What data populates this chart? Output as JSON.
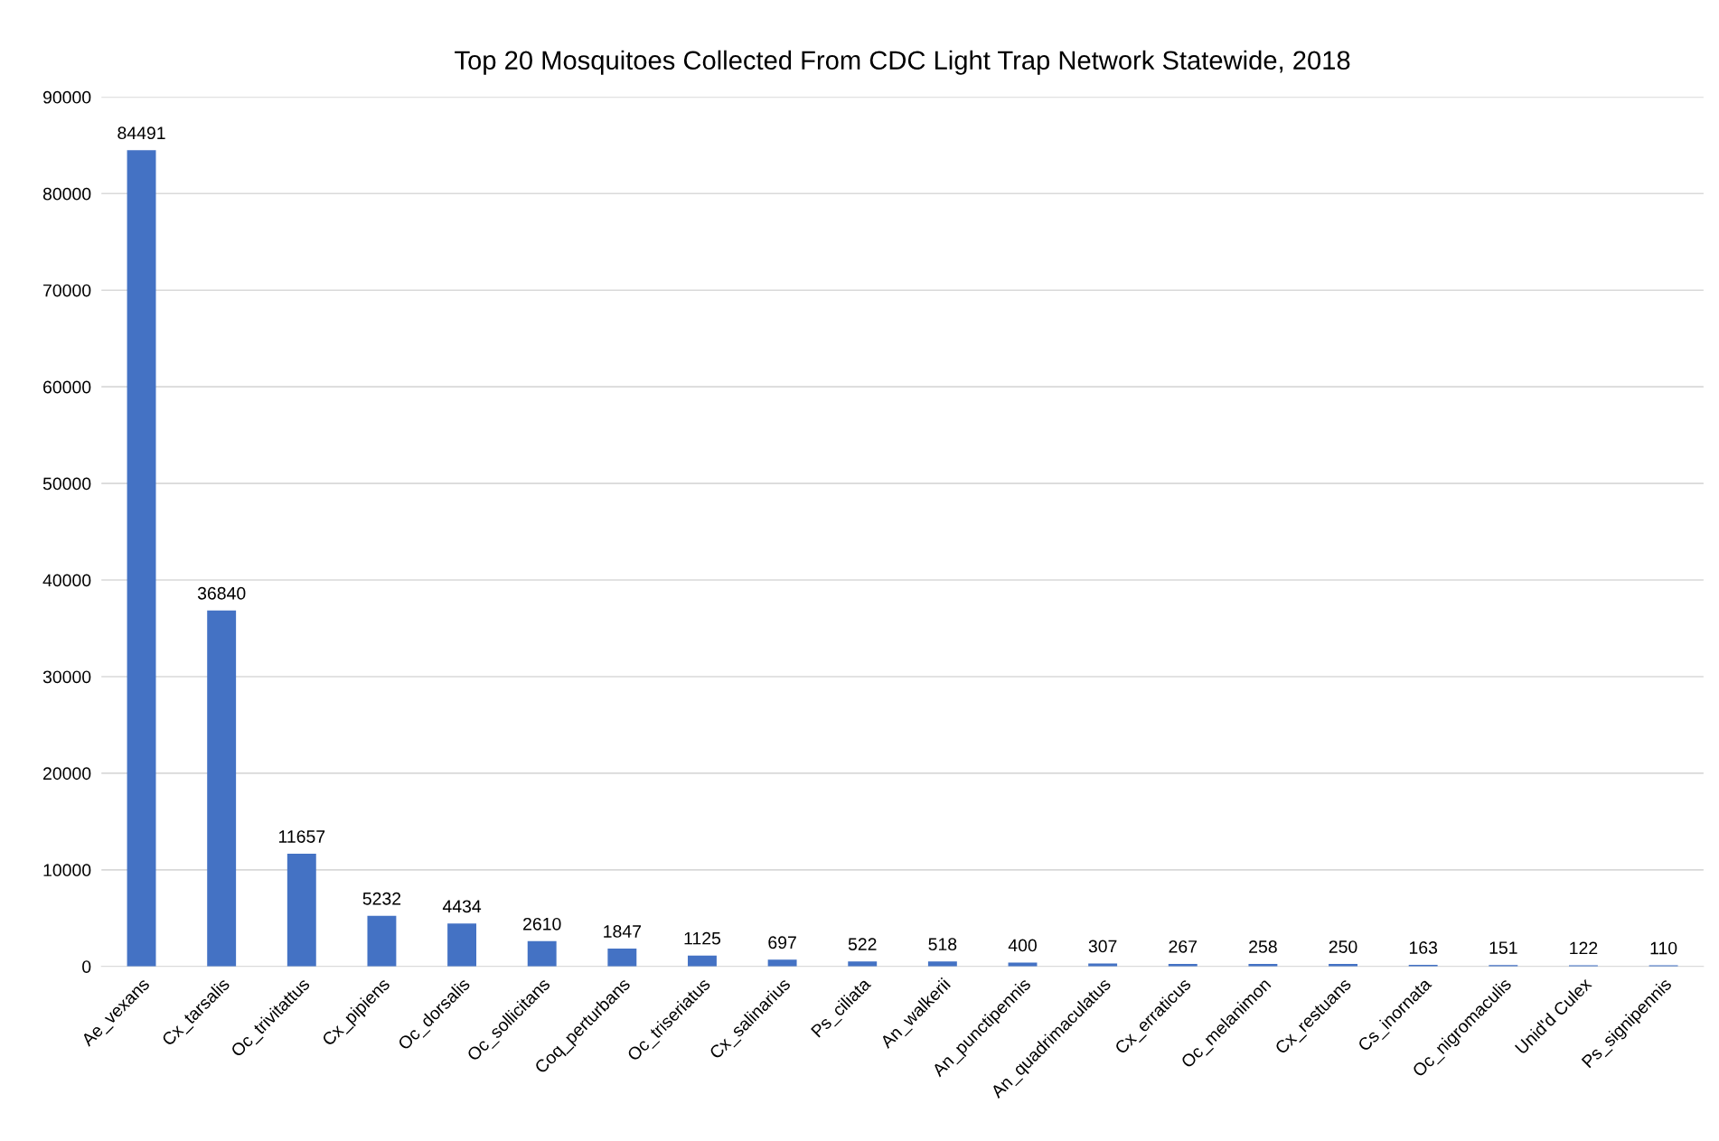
{
  "chart_data": {
    "type": "bar",
    "title": "Top 20 Mosquitoes Collected From CDC Light Trap Network Statewide, 2018",
    "categories": [
      "Ae_vexans",
      "Cx_tarsalis",
      "Oc_trivitattus",
      "Cx_pipiens",
      "Oc_dorsalis",
      "Oc_sollicitans",
      "Coq_perturbans",
      "Oc_triseriatus",
      "Cx_salinarius",
      "Ps_ciliata",
      "An_walkerii",
      "An_punctipennis",
      "An_quadrimaculatus",
      "Cx_erraticus",
      "Oc_melanimon",
      "Cx_restuans",
      "Cs_inornata",
      "Oc_nigromaculis",
      "Unid'd Culex",
      "Ps_signipennis"
    ],
    "values": [
      84491,
      36840,
      11657,
      5232,
      4434,
      2610,
      1847,
      1125,
      697,
      522,
      518,
      400,
      307,
      267,
      258,
      250,
      163,
      151,
      122,
      110
    ],
    "color": "#4472c4",
    "ylim": [
      0,
      90000
    ],
    "yticks": [
      0,
      10000,
      20000,
      30000,
      40000,
      50000,
      60000,
      70000,
      80000,
      90000
    ],
    "grid": "y",
    "data_labels": true,
    "legend": false
  }
}
